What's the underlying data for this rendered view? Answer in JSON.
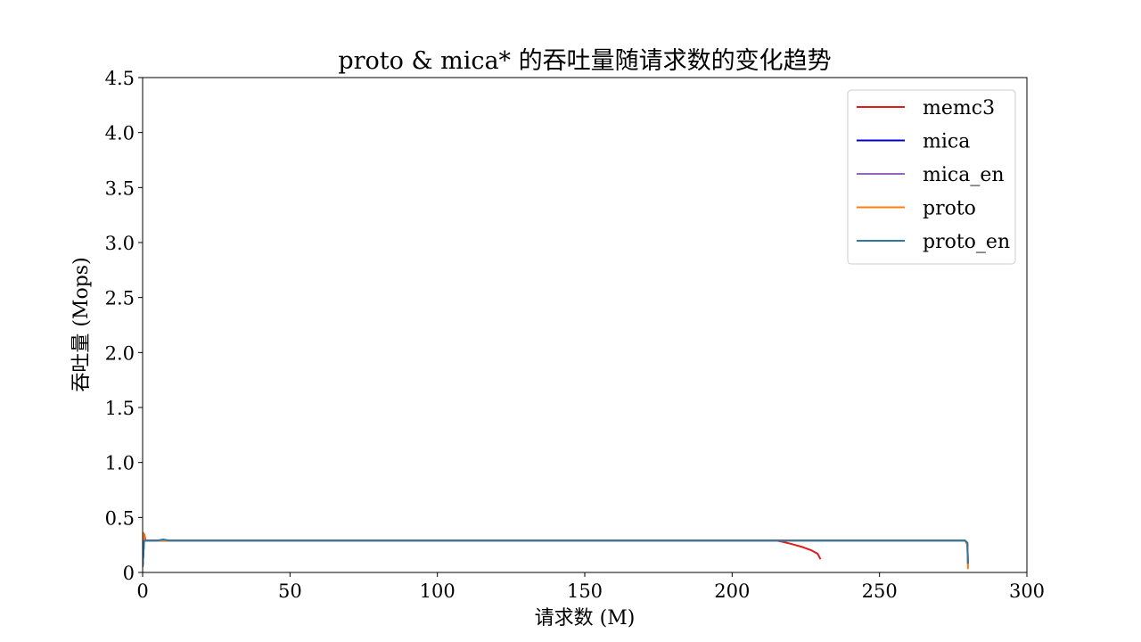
{
  "chart_data": {
    "type": "line",
    "title": "proto & mica* 的吞吐量随请求数的变化趋势",
    "xlabel": "请求数 (M)",
    "ylabel": "吞吐量 (Mops)",
    "xlim": [
      0,
      300
    ],
    "ylim": [
      0,
      4.5
    ],
    "x_ticks": [
      "0",
      "50",
      "100",
      "150",
      "200",
      "250",
      "300"
    ],
    "y_ticks": [
      "0",
      "0.5",
      "1.0",
      "1.5",
      "2.0",
      "2.5",
      "3.0",
      "3.5",
      "4.0",
      "4.5"
    ],
    "grid": false,
    "legend_position": "top-right",
    "series": [
      {
        "name": "memc3",
        "color": "#e41a1c",
        "x": [
          0,
          0.5,
          1,
          5,
          50,
          100,
          150,
          200,
          215,
          217,
          220,
          224,
          227,
          229,
          230
        ],
        "y": [
          0.05,
          0.35,
          0.29,
          0.29,
          0.29,
          0.29,
          0.29,
          0.29,
          0.29,
          0.28,
          0.26,
          0.23,
          0.2,
          0.17,
          0.12
        ]
      },
      {
        "name": "mica",
        "color": "#0000cc",
        "x": [
          0,
          0.5,
          1,
          50,
          100,
          150,
          200,
          250,
          279,
          279.8,
          280
        ],
        "y": [
          0.05,
          0.29,
          0.29,
          0.29,
          0.29,
          0.29,
          0.29,
          0.29,
          0.29,
          0.27,
          0.08
        ]
      },
      {
        "name": "mica_en",
        "color": "#9467bd",
        "x": [
          0,
          0.5,
          1,
          50,
          100,
          150,
          200,
          250,
          279,
          279.8,
          280
        ],
        "y": [
          0.05,
          0.29,
          0.29,
          0.29,
          0.29,
          0.29,
          0.29,
          0.29,
          0.29,
          0.27,
          0.06
        ]
      },
      {
        "name": "proto",
        "color": "#ff7f0e",
        "x": [
          0,
          0.3,
          0.6,
          1,
          50,
          100,
          150,
          200,
          250,
          279,
          279.8,
          280
        ],
        "y": [
          0.05,
          0.36,
          0.3,
          0.29,
          0.29,
          0.29,
          0.29,
          0.29,
          0.29,
          0.29,
          0.25,
          0.03
        ]
      },
      {
        "name": "proto_en",
        "color": "#2e7a9e",
        "x": [
          0,
          0.5,
          1,
          5,
          7,
          9,
          50,
          100,
          150,
          200,
          250,
          279,
          279.8,
          280
        ],
        "y": [
          0.05,
          0.29,
          0.29,
          0.29,
          0.3,
          0.29,
          0.29,
          0.29,
          0.29,
          0.29,
          0.29,
          0.29,
          0.27,
          0.08
        ]
      }
    ]
  }
}
